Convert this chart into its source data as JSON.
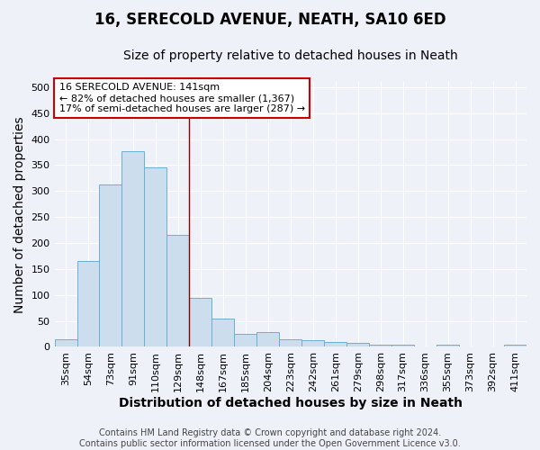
{
  "title": "16, SERECOLD AVENUE, NEATH, SA10 6ED",
  "subtitle": "Size of property relative to detached houses in Neath",
  "xlabel": "Distribution of detached houses by size in Neath",
  "ylabel": "Number of detached properties",
  "categories": [
    "35sqm",
    "54sqm",
    "73sqm",
    "91sqm",
    "110sqm",
    "129sqm",
    "148sqm",
    "167sqm",
    "185sqm",
    "204sqm",
    "223sqm",
    "242sqm",
    "261sqm",
    "279sqm",
    "298sqm",
    "317sqm",
    "336sqm",
    "355sqm",
    "373sqm",
    "392sqm",
    "411sqm"
  ],
  "values": [
    15,
    165,
    312,
    377,
    345,
    215,
    95,
    55,
    25,
    28,
    15,
    13,
    10,
    7,
    5,
    4,
    0,
    4,
    0,
    0,
    4
  ],
  "bar_color": "#ccdded",
  "bar_edge_color": "#6aafd6",
  "vline_color": "#8B0000",
  "vline_x": 5.5,
  "annotation_line1": "16 SERECOLD AVENUE: 141sqm",
  "annotation_line2": "← 82% of detached houses are smaller (1,367)",
  "annotation_line3": "17% of semi-detached houses are larger (287) →",
  "annotation_box_color": "white",
  "annotation_box_edge_color": "#cc0000",
  "footnote": "Contains HM Land Registry data © Crown copyright and database right 2024.\nContains public sector information licensed under the Open Government Licence v3.0.",
  "ylim_max": 510,
  "background_color": "#eef2f8",
  "grid_color": "white",
  "title_fontsize": 12,
  "subtitle_fontsize": 10,
  "axis_label_fontsize": 10,
  "tick_fontsize": 8,
  "annotation_fontsize": 8,
  "footnote_fontsize": 7
}
